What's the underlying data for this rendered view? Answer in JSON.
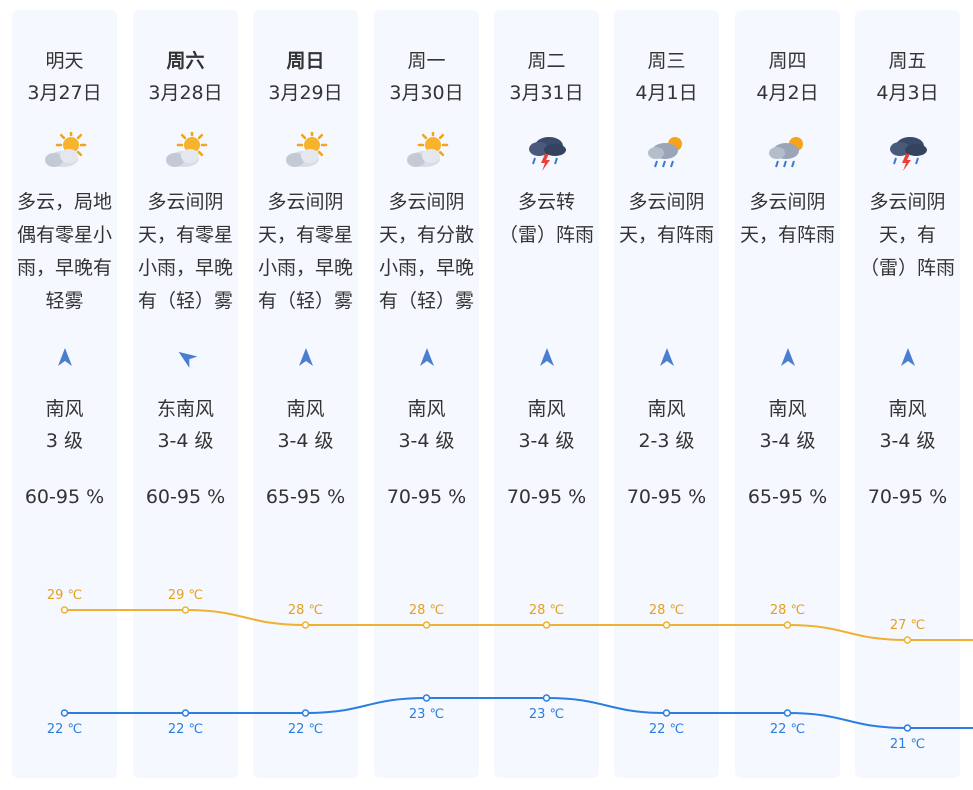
{
  "days": [
    {
      "day": "明天",
      "bold": false,
      "date": "3月27日",
      "icon": "partly-cloudy-sun-icon",
      "desc": "多云，局地\n偶有零星小\n雨，早晚有\n轻雾",
      "wind_dir": "南风",
      "wind_level": "3 级",
      "wind_arrow": "north-arrow-icon",
      "humidity": "60-95 %",
      "high": "29 ℃",
      "low": "22 ℃",
      "high_v": 29,
      "low_v": 22
    },
    {
      "day": "周六",
      "bold": true,
      "date": "3月28日",
      "icon": "partly-cloudy-sun-icon",
      "desc": "多云间阴\n天，有零星\n小雨，早晚\n有（轻）雾",
      "wind_dir": "东南风",
      "wind_level": "3-4 级",
      "wind_arrow": "northwest-arrow-icon",
      "humidity": "60-95 %",
      "high": "29 ℃",
      "low": "22 ℃",
      "high_v": 29,
      "low_v": 22
    },
    {
      "day": "周日",
      "bold": true,
      "date": "3月29日",
      "icon": "partly-cloudy-sun-icon",
      "desc": "多云间阴\n天，有零星\n小雨，早晚\n有（轻）雾",
      "wind_dir": "南风",
      "wind_level": "3-4 级",
      "wind_arrow": "north-arrow-icon",
      "humidity": "65-95 %",
      "high": "28 ℃",
      "low": "22 ℃",
      "high_v": 28,
      "low_v": 22
    },
    {
      "day": "周一",
      "bold": false,
      "date": "3月30日",
      "icon": "partly-cloudy-sun-icon",
      "desc": "多云间阴\n天，有分散\n小雨，早晚\n有（轻）雾",
      "wind_dir": "南风",
      "wind_level": "3-4 级",
      "wind_arrow": "north-arrow-icon",
      "humidity": "70-95 %",
      "high": "28 ℃",
      "low": "23 ℃",
      "high_v": 28,
      "low_v": 23
    },
    {
      "day": "周二",
      "bold": false,
      "date": "3月31日",
      "icon": "thunderstorm-icon",
      "desc": "多云转\n（雷）阵雨",
      "wind_dir": "南风",
      "wind_level": "3-4 级",
      "wind_arrow": "north-arrow-icon",
      "humidity": "70-95 %",
      "high": "28 ℃",
      "low": "23 ℃",
      "high_v": 28,
      "low_v": 23
    },
    {
      "day": "周三",
      "bold": false,
      "date": "4月1日",
      "icon": "cloud-sun-rain-icon",
      "desc": "多云间阴\n天，有阵雨",
      "wind_dir": "南风",
      "wind_level": "2-3 级",
      "wind_arrow": "north-arrow-icon",
      "humidity": "70-95 %",
      "high": "28 ℃",
      "low": "22 ℃",
      "high_v": 28,
      "low_v": 22
    },
    {
      "day": "周四",
      "bold": false,
      "date": "4月2日",
      "icon": "cloud-sun-rain-icon",
      "desc": "多云间阴\n天，有阵雨",
      "wind_dir": "南风",
      "wind_level": "3-4 级",
      "wind_arrow": "north-arrow-icon",
      "humidity": "65-95 %",
      "high": "28 ℃",
      "low": "22 ℃",
      "high_v": 28,
      "low_v": 22
    },
    {
      "day": "周五",
      "bold": false,
      "date": "4月3日",
      "icon": "thunderstorm-icon",
      "desc": "多云间阴\n天，有\n（雷）阵雨",
      "wind_dir": "南风",
      "wind_level": "3-4 级",
      "wind_arrow": "north-arrow-icon",
      "humidity": "70-95 %",
      "high": "27 ℃",
      "low": "21 ℃",
      "high_v": 27,
      "low_v": 21
    }
  ],
  "colors": {
    "high_line": "#f0b030",
    "low_line": "#2a7ee0",
    "high_text": "#e6a020",
    "low_text": "#2a7ee0",
    "column_bg": "#f5f8fe",
    "arrow": "#4a7fd0"
  }
}
